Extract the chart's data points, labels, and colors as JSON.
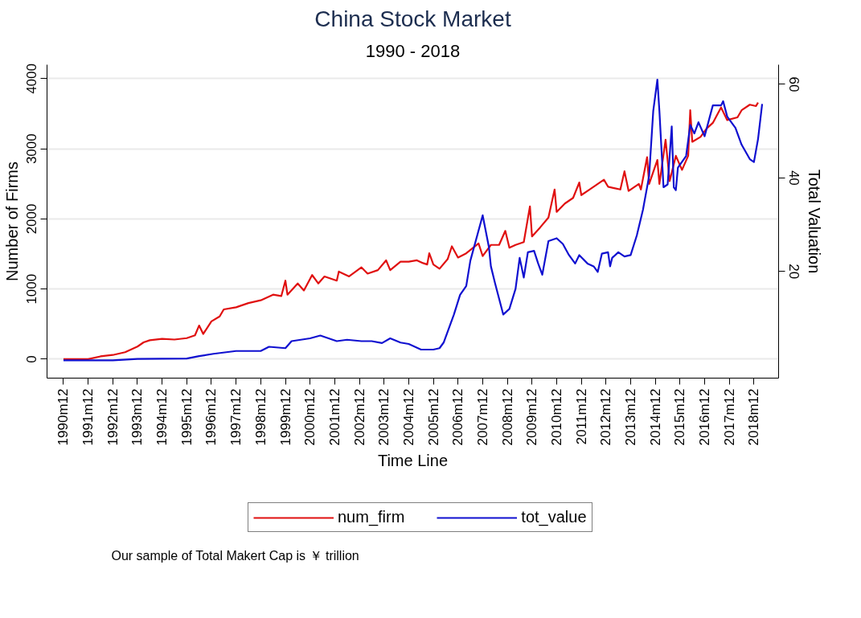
{
  "chart_data": {
    "type": "line",
    "title": "China Stock Market",
    "subtitle": "1990 - 2018",
    "xlabel": "Time Line",
    "ylabel": "Number of Firms",
    "y2label": "Total Valuation",
    "annotations": [
      "Our sample of Total Makert Cap is ￥ trillion"
    ],
    "xlim": [
      "1990-04",
      "2019-12"
    ],
    "xticks": [
      {
        "value": "1990-12",
        "label": "1990m12"
      },
      {
        "value": "1991-12",
        "label": "1991m12"
      },
      {
        "value": "1992-12",
        "label": "1992m12"
      },
      {
        "value": "1993-12",
        "label": "1993m12"
      },
      {
        "value": "1994-12",
        "label": "1994m12"
      },
      {
        "value": "1995-12",
        "label": "1995m12"
      },
      {
        "value": "1996-12",
        "label": "1996m12"
      },
      {
        "value": "1997-12",
        "label": "1997m12"
      },
      {
        "value": "1998-12",
        "label": "1998m12"
      },
      {
        "value": "1999-12",
        "label": "1999m12"
      },
      {
        "value": "2000-12",
        "label": "2000m12"
      },
      {
        "value": "2001-12",
        "label": "2001m12"
      },
      {
        "value": "2002-12",
        "label": "2002m12"
      },
      {
        "value": "2003-12",
        "label": "2003m12"
      },
      {
        "value": "2004-12",
        "label": "2004m12"
      },
      {
        "value": "2005-12",
        "label": "2005m12"
      },
      {
        "value": "2006-12",
        "label": "2006m12"
      },
      {
        "value": "2007-12",
        "label": "2007m12"
      },
      {
        "value": "2008-12",
        "label": "2008m12"
      },
      {
        "value": "2009-12",
        "label": "2009m12"
      },
      {
        "value": "2010-12",
        "label": "2010m12"
      },
      {
        "value": "2011-12",
        "label": "2011m12"
      },
      {
        "value": "2012-12",
        "label": "2012m12"
      },
      {
        "value": "2013-12",
        "label": "2013m12"
      },
      {
        "value": "2014-12",
        "label": "2014m12"
      },
      {
        "value": "2015-12",
        "label": "2015m12"
      },
      {
        "value": "2016-12",
        "label": "2016m12"
      },
      {
        "value": "2017-12",
        "label": "2017m12"
      },
      {
        "value": "2018-12",
        "label": "2018m12"
      }
    ],
    "ylim": [
      -270,
      4200
    ],
    "yticks": [
      0,
      1000,
      2000,
      3000,
      4000
    ],
    "y2lim": [
      -2.8,
      64.2
    ],
    "y2ticks": [
      20,
      40,
      60
    ],
    "grid": "y",
    "legend": "bottom",
    "line_style": "solid",
    "series": [
      {
        "name": "num_firm",
        "color": "#e01010",
        "x": [
          "1990-12",
          "1991-12",
          "1992-06",
          "1992-12",
          "1993-06",
          "1993-12",
          "1994-03",
          "1994-06",
          "1994-12",
          "1995-06",
          "1995-12",
          "1996-04",
          "1996-06",
          "1996-08",
          "1996-12",
          "1997-04",
          "1997-06",
          "1997-12",
          "1998-06",
          "1998-12",
          "1999-06",
          "1999-10",
          "1999-12",
          "2000-01",
          "2000-06",
          "2000-09",
          "2001-01",
          "2001-04",
          "2001-07",
          "2002-01",
          "2002-02",
          "2002-07",
          "2003-01",
          "2003-04",
          "2003-09",
          "2004-01",
          "2004-03",
          "2004-08",
          "2004-12",
          "2005-04",
          "2005-07",
          "2005-09",
          "2005-10",
          "2005-12",
          "2006-03",
          "2006-07",
          "2006-09",
          "2006-12",
          "2007-04",
          "2007-10",
          "2007-12",
          "2008-04",
          "2008-08",
          "2008-11",
          "2009-01",
          "2009-04",
          "2009-08",
          "2009-11",
          "2009-12",
          "2010-04",
          "2010-08",
          "2010-11",
          "2010-12",
          "2011-04",
          "2011-08",
          "2011-11",
          "2011-12",
          "2012-04",
          "2012-08",
          "2012-11",
          "2013-01",
          "2013-04",
          "2013-07",
          "2013-09",
          "2013-11",
          "2014-04",
          "2014-05",
          "2014-08",
          "2014-09",
          "2015-01",
          "2015-02",
          "2015-05",
          "2015-07",
          "2015-10",
          "2016-01",
          "2016-04",
          "2016-05",
          "2016-06",
          "2016-10",
          "2017-01",
          "2017-04",
          "2017-08",
          "2017-11",
          "2018-04",
          "2018-06",
          "2018-10",
          "2019-01",
          "2019-02"
        ],
        "values": [
          0,
          0,
          40,
          60,
          100,
          180,
          240,
          270,
          290,
          280,
          300,
          340,
          480,
          360,
          540,
          610,
          710,
          740,
          800,
          840,
          920,
          900,
          1120,
          920,
          1080,
          980,
          1200,
          1080,
          1180,
          1120,
          1250,
          1180,
          1310,
          1220,
          1270,
          1410,
          1270,
          1390,
          1390,
          1410,
          1370,
          1350,
          1510,
          1350,
          1290,
          1430,
          1610,
          1450,
          1510,
          1650,
          1470,
          1630,
          1630,
          1830,
          1590,
          1630,
          1670,
          2180,
          1750,
          1880,
          2020,
          2420,
          2100,
          2220,
          2300,
          2520,
          2340,
          2420,
          2500,
          2560,
          2460,
          2440,
          2420,
          2680,
          2400,
          2500,
          2420,
          2880,
          2500,
          2840,
          2500,
          3130,
          2540,
          2900,
          2700,
          2900,
          3550,
          3100,
          3170,
          3290,
          3370,
          3590,
          3410,
          3450,
          3550,
          3630,
          3610,
          3660
        ]
      },
      {
        "name": "tot_value",
        "color": "#1010d0",
        "axis": "y2",
        "x": [
          "1990-12",
          "1992-12",
          "1993-12",
          "1995-12",
          "1996-06",
          "1997-01",
          "1997-12",
          "1998-12",
          "1999-04",
          "1999-12",
          "2000-03",
          "2000-12",
          "2001-05",
          "2002-01",
          "2002-06",
          "2003-01",
          "2003-06",
          "2003-11",
          "2004-03",
          "2004-08",
          "2004-12",
          "2005-06",
          "2005-12",
          "2006-03",
          "2006-05",
          "2006-07",
          "2006-10",
          "2007-01",
          "2007-04",
          "2007-06",
          "2007-12",
          "2008-03",
          "2008-04",
          "2008-06",
          "2008-10",
          "2009-01",
          "2009-04",
          "2009-06",
          "2009-08",
          "2009-10",
          "2010-01",
          "2010-03",
          "2010-05",
          "2010-08",
          "2010-12",
          "2011-03",
          "2011-06",
          "2011-09",
          "2011-11",
          "2012-03",
          "2012-06",
          "2012-08",
          "2012-10",
          "2013-01",
          "2013-02",
          "2013-03",
          "2013-06",
          "2013-09",
          "2013-12",
          "2014-03",
          "2014-06",
          "2014-09",
          "2014-11",
          "2015-01",
          "2015-02",
          "2015-04",
          "2015-06",
          "2015-08",
          "2015-09",
          "2015-10",
          "2015-11",
          "2016-03",
          "2016-05",
          "2016-07",
          "2016-09",
          "2016-12",
          "2017-04",
          "2017-08",
          "2017-09",
          "2017-11",
          "2018-03",
          "2018-06",
          "2018-10",
          "2018-12",
          "2019-02",
          "2019-04"
        ],
        "values": [
          1.0,
          1.0,
          1.3,
          1.4,
          1.9,
          2.4,
          3.0,
          3.0,
          3.9,
          3.6,
          5.1,
          5.7,
          6.3,
          5.1,
          5.4,
          5.1,
          5.1,
          4.7,
          5.7,
          4.8,
          4.5,
          3.3,
          3.3,
          3.6,
          4.8,
          7.2,
          10.8,
          15.0,
          16.9,
          22.3,
          32.0,
          25.3,
          21.1,
          17.5,
          10.8,
          12.0,
          16.3,
          22.9,
          18.7,
          24.1,
          24.4,
          21.7,
          19.3,
          26.5,
          27.1,
          25.9,
          23.5,
          21.7,
          23.5,
          21.7,
          21.1,
          19.9,
          23.8,
          24.1,
          21.1,
          22.9,
          24.1,
          23.2,
          23.5,
          27.7,
          33.2,
          40.4,
          54.3,
          61.0,
          54.3,
          38.0,
          38.6,
          51.0,
          38.0,
          37.4,
          42.2,
          44.7,
          51.3,
          49.5,
          51.9,
          48.9,
          55.5,
          55.5,
          56.4,
          53.1,
          50.7,
          47.1,
          44.0,
          43.4,
          48.3,
          55.8
        ]
      }
    ]
  }
}
